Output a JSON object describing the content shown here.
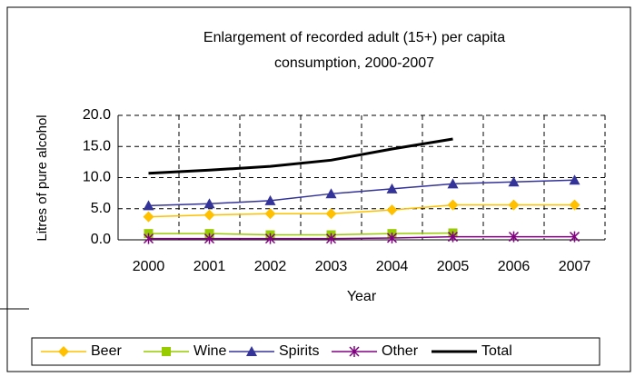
{
  "chart_data": {
    "type": "line",
    "title": [
      "Enlargement of recorded adult (15+) per capita",
      "consumption, 2000-2007"
    ],
    "x_label": "Year",
    "y_label": "Litres of pure alcohol",
    "categories": [
      "2000",
      "2001",
      "2002",
      "2003",
      "2004",
      "2005",
      "2006",
      "2007"
    ],
    "series": [
      {
        "name": "Beer",
        "color": "#ffc000",
        "marker": "diamond",
        "values": [
          3.7,
          4.0,
          4.2,
          4.2,
          4.8,
          5.6,
          5.6,
          5.6
        ]
      },
      {
        "name": "Wine",
        "color": "#99cc00",
        "marker": "square",
        "values": [
          1.0,
          1.0,
          0.8,
          0.8,
          1.0,
          1.1,
          null,
          null
        ]
      },
      {
        "name": "Spirits",
        "color": "#333399",
        "marker": "triangle",
        "values": [
          5.5,
          5.8,
          6.3,
          7.4,
          8.2,
          9.0,
          9.3,
          9.6
        ]
      },
      {
        "name": "Other",
        "color": "#800080",
        "marker": "star",
        "values": [
          0.2,
          0.2,
          0.2,
          0.2,
          0.3,
          0.5,
          0.5,
          0.5
        ]
      },
      {
        "name": "Total",
        "color": "#000000",
        "marker": "none",
        "values": [
          10.7,
          11.2,
          11.8,
          12.8,
          14.6,
          16.2,
          null,
          null
        ]
      }
    ],
    "ylim": [
      0,
      20
    ],
    "yticks": [
      {
        "value": 0,
        "label": "0.0"
      },
      {
        "value": 5,
        "label": "5.0"
      },
      {
        "value": 10,
        "label": "10.0"
      },
      {
        "value": 15,
        "label": "15.0"
      },
      {
        "value": 20,
        "label": "20.0"
      }
    ],
    "grid": true,
    "legend": "bottom"
  }
}
